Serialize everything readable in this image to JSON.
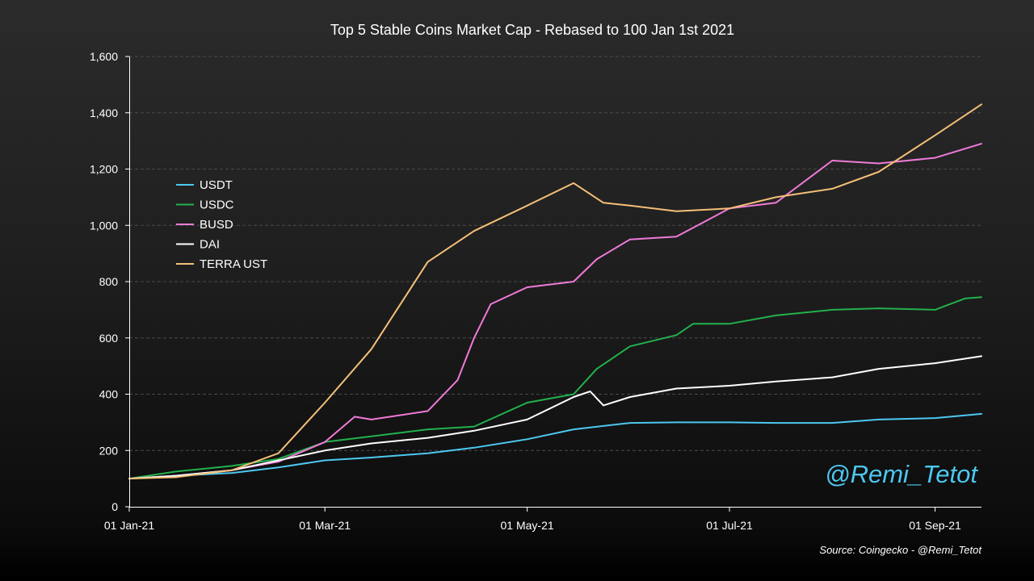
{
  "chart_data": {
    "type": "line",
    "title": "Top 5 Stable Coins Market Cap - Rebased to 100 Jan 1st 2021",
    "xlabel": "",
    "ylabel": "",
    "ylim": [
      0,
      1600
    ],
    "yticks": [
      0,
      200,
      400,
      600,
      800,
      1000,
      1200,
      1400,
      1600
    ],
    "ytick_labels": [
      "0",
      "200",
      "400",
      "600",
      "800",
      "1,000",
      "1,200",
      "1,400",
      "1,600"
    ],
    "xlim": [
      "2021-01-01",
      "2021-09-15"
    ],
    "xticks": [
      "2021-01-01",
      "2021-03-01",
      "2021-05-01",
      "2021-07-01",
      "2021-09-01"
    ],
    "xtick_labels": [
      "01 Jan-21",
      "01 Mar-21",
      "01 May-21",
      "01 Jul-21",
      "01 Sep-21"
    ],
    "grid": "horizontal dashed",
    "legend_position": "upper-left",
    "watermark": "@Remi_Tetot",
    "source": "Source: Coingecko - @Remi_Tetot",
    "series": [
      {
        "name": "USDT",
        "color": "#4dc8f0",
        "x": [
          "2021-01-01",
          "2021-01-15",
          "2021-02-01",
          "2021-02-15",
          "2021-03-01",
          "2021-03-15",
          "2021-04-01",
          "2021-04-15",
          "2021-05-01",
          "2021-05-15",
          "2021-06-01",
          "2021-06-15",
          "2021-07-01",
          "2021-07-15",
          "2021-08-01",
          "2021-08-15",
          "2021-09-01",
          "2021-09-15"
        ],
        "y": [
          100,
          110,
          120,
          140,
          165,
          175,
          190,
          210,
          240,
          275,
          298,
          300,
          300,
          298,
          298,
          310,
          315,
          330
        ]
      },
      {
        "name": "USDC",
        "color": "#22b14c",
        "x": [
          "2021-01-01",
          "2021-01-15",
          "2021-02-01",
          "2021-02-15",
          "2021-03-01",
          "2021-03-15",
          "2021-04-01",
          "2021-04-15",
          "2021-05-01",
          "2021-05-15",
          "2021-05-22",
          "2021-06-01",
          "2021-06-15",
          "2021-06-20",
          "2021-07-01",
          "2021-07-15",
          "2021-08-01",
          "2021-08-15",
          "2021-09-01",
          "2021-09-10",
          "2021-09-15"
        ],
        "y": [
          100,
          125,
          145,
          170,
          230,
          250,
          275,
          285,
          370,
          400,
          490,
          570,
          610,
          650,
          650,
          680,
          700,
          705,
          700,
          740,
          745
        ]
      },
      {
        "name": "BUSD",
        "color": "#f07ad8",
        "x": [
          "2021-01-01",
          "2021-01-15",
          "2021-02-01",
          "2021-02-15",
          "2021-03-01",
          "2021-03-10",
          "2021-03-15",
          "2021-04-01",
          "2021-04-10",
          "2021-04-15",
          "2021-04-20",
          "2021-05-01",
          "2021-05-15",
          "2021-05-22",
          "2021-06-01",
          "2021-06-15",
          "2021-07-01",
          "2021-07-15",
          "2021-08-01",
          "2021-08-15",
          "2021-09-01",
          "2021-09-15"
        ],
        "y": [
          100,
          110,
          130,
          160,
          230,
          320,
          310,
          340,
          450,
          600,
          720,
          780,
          800,
          880,
          950,
          960,
          1060,
          1080,
          1230,
          1220,
          1240,
          1290
        ]
      },
      {
        "name": "DAI",
        "color": "#ffffff",
        "x": [
          "2021-01-01",
          "2021-01-15",
          "2021-02-01",
          "2021-02-15",
          "2021-03-01",
          "2021-03-15",
          "2021-04-01",
          "2021-04-15",
          "2021-05-01",
          "2021-05-15",
          "2021-05-20",
          "2021-05-24",
          "2021-06-01",
          "2021-06-15",
          "2021-07-01",
          "2021-07-15",
          "2021-08-01",
          "2021-08-15",
          "2021-09-01",
          "2021-09-15"
        ],
        "y": [
          100,
          110,
          130,
          165,
          200,
          225,
          245,
          270,
          310,
          390,
          410,
          360,
          390,
          420,
          430,
          445,
          460,
          490,
          510,
          535
        ]
      },
      {
        "name": "TERRA UST",
        "color": "#f5c078",
        "x": [
          "2021-01-01",
          "2021-01-15",
          "2021-02-01",
          "2021-02-15",
          "2021-03-01",
          "2021-03-15",
          "2021-04-01",
          "2021-04-15",
          "2021-05-01",
          "2021-05-15",
          "2021-05-24",
          "2021-06-01",
          "2021-06-15",
          "2021-07-01",
          "2021-07-15",
          "2021-08-01",
          "2021-08-15",
          "2021-09-01",
          "2021-09-15"
        ],
        "y": [
          100,
          105,
          130,
          190,
          370,
          560,
          870,
          980,
          1070,
          1150,
          1080,
          1070,
          1050,
          1060,
          1100,
          1130,
          1190,
          1320,
          1430
        ]
      }
    ]
  }
}
